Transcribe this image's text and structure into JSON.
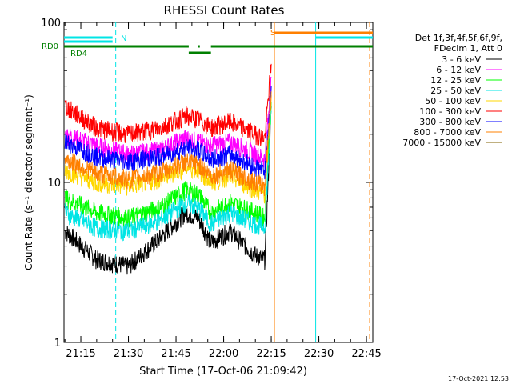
{
  "chart_data": {
    "type": "line",
    "title": "RHESSI Count Rates",
    "xlabel": "Start Time (17-Oct-06 21:09:42)",
    "ylabel": "Count Rate (s⁻¹ detector segment⁻¹)",
    "y_scale": "log",
    "ylim": [
      1,
      100
    ],
    "xlim": [
      "21:09:42",
      "22:47:00"
    ],
    "x_ticks": [
      "21:15",
      "21:30",
      "21:45",
      "22:00",
      "22:15",
      "22:30",
      "22:45"
    ],
    "y_ticks": [
      "1",
      "10",
      "100"
    ],
    "legend_title": [
      "Det 1f,3f,4f,5f,6f,9f,",
      "FDecim 1, Att 0"
    ],
    "legend_position": "right",
    "footer_date": "17-Oct-2021 12:53",
    "flags": [
      {
        "label": "RD0",
        "color": "#008000"
      },
      {
        "label": "RD4",
        "color": "#008000"
      },
      {
        "label": "N",
        "color": "#00e5e5"
      },
      {
        "label": "S",
        "color": "#ff8000"
      }
    ],
    "series": [
      {
        "name": "3 - 6 keV",
        "color": "#000000",
        "x": [
          "21:10",
          "21:20",
          "21:30",
          "21:40",
          "21:48",
          "21:52",
          "21:56",
          "22:02",
          "22:10",
          "22:13",
          "22:15"
        ],
        "y": [
          5.0,
          3.3,
          3.0,
          4.5,
          6.5,
          6.0,
          4.2,
          5.0,
          3.5,
          3.3,
          30
        ]
      },
      {
        "name": "6 - 12 keV",
        "color": "#ff00ff",
        "x": [
          "21:10",
          "21:20",
          "21:30",
          "21:40",
          "21:48",
          "21:52",
          "21:56",
          "22:02",
          "22:10",
          "22:13",
          "22:15"
        ],
        "y": [
          20,
          17,
          15,
          16,
          19,
          18,
          17,
          18,
          15,
          14,
          45
        ]
      },
      {
        "name": "12 - 25 keV",
        "color": "#00ff00",
        "x": [
          "21:10",
          "21:20",
          "21:30",
          "21:40",
          "21:48",
          "21:52",
          "21:56",
          "22:02",
          "22:10",
          "22:13",
          "22:15"
        ],
        "y": [
          8,
          6.5,
          6,
          7,
          9,
          8.5,
          6.5,
          7.5,
          6.5,
          6,
          32
        ]
      },
      {
        "name": "25 - 50 keV",
        "color": "#00e5e5",
        "x": [
          "21:10",
          "21:20",
          "21:30",
          "21:40",
          "21:48",
          "21:52",
          "21:56",
          "22:02",
          "22:10",
          "22:13",
          "22:15"
        ],
        "y": [
          6.5,
          5.2,
          5,
          5.8,
          7.5,
          7,
          5.5,
          6.5,
          5.5,
          5.3,
          28
        ]
      },
      {
        "name": "50 - 100 keV",
        "color": "#ffd700",
        "x": [
          "21:10",
          "21:20",
          "21:30",
          "21:40",
          "21:48",
          "21:52",
          "21:56",
          "22:02",
          "22:10",
          "22:13",
          "22:15"
        ],
        "y": [
          12,
          10,
          9.5,
          10.5,
          12.5,
          12,
          10,
          11,
          9,
          8.5,
          35
        ]
      },
      {
        "name": "100 - 300 keV",
        "color": "#ff0000",
        "x": [
          "21:10",
          "21:20",
          "21:30",
          "21:40",
          "21:48",
          "21:52",
          "21:56",
          "22:02",
          "22:10",
          "22:13",
          "22:15"
        ],
        "y": [
          30,
          22,
          20,
          22,
          26,
          25,
          22,
          24,
          20,
          19,
          55
        ]
      },
      {
        "name": "300 - 800 keV",
        "color": "#0000ff",
        "x": [
          "21:10",
          "21:20",
          "21:30",
          "21:40",
          "21:48",
          "21:52",
          "21:56",
          "22:02",
          "22:10",
          "22:13",
          "22:15"
        ],
        "y": [
          18,
          14.5,
          13.5,
          14.5,
          16.5,
          16,
          14,
          15,
          12.5,
          12,
          40
        ]
      },
      {
        "name": "800 - 7000 keV",
        "color": "#ff8000",
        "x": [
          "21:10",
          "21:20",
          "21:30",
          "21:40",
          "21:48",
          "21:52",
          "21:56",
          "22:02",
          "22:10",
          "22:13",
          "22:15"
        ],
        "y": [
          14,
          11.5,
          10.5,
          11.5,
          13.5,
          13,
          11,
          12,
          10,
          9.5,
          37
        ]
      },
      {
        "name": "7000 - 15000 keV",
        "color": "#806000",
        "x": [],
        "y": []
      }
    ],
    "vertical_lines": [
      {
        "x": "21:26",
        "color": "#00e5e5",
        "style": "dashed"
      },
      {
        "x": "22:16",
        "color": "#ff8000",
        "style": "solid"
      },
      {
        "x": "22:29",
        "color": "#00e5e5",
        "style": "solid"
      },
      {
        "x": "22:46",
        "color": "#ff8000",
        "style": "dashed"
      }
    ]
  }
}
